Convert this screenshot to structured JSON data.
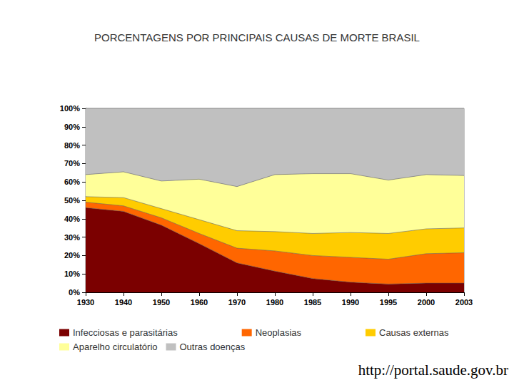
{
  "chart_data": {
    "type": "area",
    "title": "PORCENTAGENS POR PRINCIPAIS CAUSAS DE MORTE BRASIL",
    "annotations": [
      "http://portal.saude.gov.br"
    ],
    "categories": [
      "1930",
      "1940",
      "1950",
      "1960",
      "1970",
      "1980",
      "1985",
      "1990",
      "1995",
      "2000",
      "2003"
    ],
    "series": [
      {
        "name": "Infecciosas e parasitárias",
        "color": "#7b0000",
        "values": [
          46,
          44,
          36.5,
          26.5,
          16,
          11.5,
          7.5,
          5.5,
          4.5,
          5,
          5
        ]
      },
      {
        "name": "Neoplasias",
        "color": "#ff6600",
        "values": [
          3,
          3,
          4,
          5.5,
          8,
          11,
          12.5,
          13.5,
          13.5,
          16,
          16.5
        ]
      },
      {
        "name": "Causas externas",
        "color": "#ffcc00",
        "values": [
          3,
          4.5,
          5,
          7.5,
          9.5,
          10.5,
          12,
          13.5,
          14,
          13.5,
          13.5
        ]
      },
      {
        "name": "Aparelho circulatório",
        "color": "#ffff99",
        "values": [
          12,
          14,
          15,
          22,
          24,
          31,
          32.5,
          32,
          29,
          29.5,
          28.5
        ]
      },
      {
        "name": "Outras doenças",
        "color": "#c0c0c0",
        "values": [
          36,
          34.5,
          39.5,
          38.5,
          42.5,
          36,
          35.5,
          35.5,
          39,
          36,
          36.5
        ]
      }
    ],
    "stacked": true,
    "ylim": [
      0,
      100
    ],
    "yticks": [
      {
        "value": 0,
        "label": "0%"
      },
      {
        "value": 10,
        "label": "10%"
      },
      {
        "value": 20,
        "label": "20%"
      },
      {
        "value": 30,
        "label": "30%"
      },
      {
        "value": 40,
        "label": "40%"
      },
      {
        "value": 50,
        "label": "50%"
      },
      {
        "value": 60,
        "label": "60%"
      },
      {
        "value": 70,
        "label": "70%"
      },
      {
        "value": 80,
        "label": "80%"
      },
      {
        "value": 90,
        "label": "90%"
      },
      {
        "value": 100,
        "label": "100%"
      }
    ],
    "grid": false,
    "legend": "bottom"
  }
}
